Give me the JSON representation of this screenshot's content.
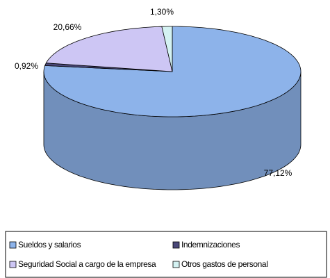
{
  "chart_data": {
    "type": "pie3d",
    "categories": [
      "Sueldos y salarios",
      "Indemnizaciones",
      "Seguridad Social a cargo de la empresa",
      "Otros gastos de personal"
    ],
    "values": [
      77.12,
      0.92,
      20.66,
      1.3
    ],
    "value_labels": [
      "77,12%",
      "0,92%",
      "20,66%",
      "1,30%"
    ],
    "colors": [
      "#8db3ea",
      "#4a4878",
      "#cdc6f4",
      "#d4f2f2"
    ],
    "legend": "bottom"
  }
}
